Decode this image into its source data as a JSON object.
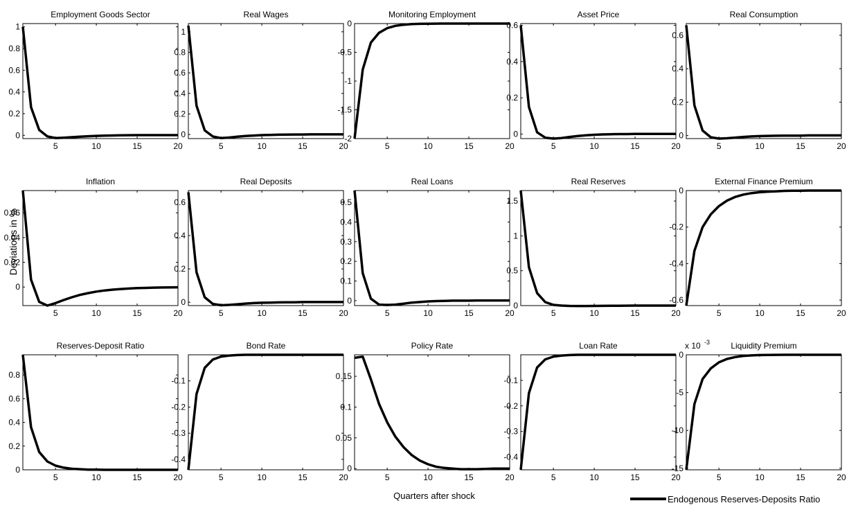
{
  "figure": {
    "ylabel": "Deviations in %",
    "xlabel": "Quarters after shock",
    "legend_label": "Endogenous Reserves-Deposits Ratio",
    "line_color": "#000000"
  },
  "chart_data": [
    {
      "type": "line",
      "title": "Employment Goods Sector",
      "xlim": [
        1,
        20
      ],
      "ylim": [
        -0.03,
        1.03
      ],
      "xticks": [
        5,
        10,
        15,
        20
      ],
      "xtick_labels": [
        "5",
        "10",
        "15",
        "20"
      ],
      "yticks": [
        0,
        0.2,
        0.4,
        0.6,
        0.8,
        1
      ],
      "ytick_labels": [
        "0",
        "0.2",
        "0.4",
        "0.6",
        "0.8",
        "1"
      ],
      "x": [
        1,
        2,
        3,
        4,
        5,
        6,
        7,
        8,
        9,
        10,
        11,
        12,
        13,
        14,
        15,
        16,
        17,
        18,
        19,
        20
      ],
      "y": [
        1.0,
        0.26,
        0.05,
        -0.01,
        -0.025,
        -0.022,
        -0.017,
        -0.012,
        -0.008,
        -0.005,
        -0.003,
        -0.001,
        0.0,
        0.001,
        0.002,
        0.002,
        0.002,
        0.002,
        0.002,
        0.002
      ]
    },
    {
      "type": "line",
      "title": "Real Wages",
      "xlim": [
        1,
        20
      ],
      "ylim": [
        -0.04,
        1.08
      ],
      "xticks": [
        5,
        10,
        15,
        20
      ],
      "xtick_labels": [
        "5",
        "10",
        "15",
        "20"
      ],
      "yticks": [
        0,
        0.2,
        0.4,
        0.6,
        0.8,
        1
      ],
      "ytick_labels": [
        "0",
        "0.2",
        "0.4",
        "0.6",
        "0.8",
        "1"
      ],
      "x": [
        1,
        2,
        3,
        4,
        5,
        6,
        7,
        8,
        9,
        10,
        11,
        12,
        13,
        14,
        15,
        16,
        17,
        18,
        19,
        20
      ],
      "y": [
        1.06,
        0.28,
        0.04,
        -0.02,
        -0.035,
        -0.03,
        -0.022,
        -0.015,
        -0.01,
        -0.006,
        -0.004,
        -0.002,
        -0.001,
        0.0,
        0.0,
        0.001,
        0.001,
        0.001,
        0.001,
        0.001
      ]
    },
    {
      "type": "line",
      "title": "Monitoring Employment",
      "xlim": [
        1,
        20
      ],
      "ylim": [
        -2.0,
        0.0
      ],
      "xticks": [
        5,
        10,
        15,
        20
      ],
      "xtick_labels": [
        "5",
        "10",
        "15",
        "20"
      ],
      "yticks": [
        -2,
        -1.5,
        -1,
        -0.5,
        0
      ],
      "ytick_labels": [
        "-2",
        "-1.5",
        "-1",
        "-0.5",
        "0"
      ],
      "x": [
        1,
        2,
        3,
        4,
        5,
        6,
        7,
        8,
        9,
        10,
        11,
        12,
        13,
        14,
        15,
        16,
        17,
        18,
        19,
        20
      ],
      "y": [
        -2.0,
        -0.8,
        -0.33,
        -0.16,
        -0.08,
        -0.04,
        -0.02,
        -0.01,
        -0.005,
        -0.002,
        -0.001,
        0.0,
        0.0,
        0.0,
        0.0,
        0.0,
        0.0,
        0.0,
        0.0,
        0.0
      ]
    },
    {
      "type": "line",
      "title": "Asset Price",
      "xlim": [
        1,
        20
      ],
      "ylim": [
        -0.025,
        0.61
      ],
      "xticks": [
        5,
        10,
        15,
        20
      ],
      "xtick_labels": [
        "5",
        "10",
        "15",
        "20"
      ],
      "yticks": [
        0,
        0.2,
        0.4,
        0.6
      ],
      "ytick_labels": [
        "0",
        "0.2",
        "0.4",
        "0.6"
      ],
      "x": [
        1,
        2,
        3,
        4,
        5,
        6,
        7,
        8,
        9,
        10,
        11,
        12,
        13,
        14,
        15,
        16,
        17,
        18,
        19,
        20
      ],
      "y": [
        0.6,
        0.15,
        0.01,
        -0.02,
        -0.025,
        -0.022,
        -0.016,
        -0.011,
        -0.007,
        -0.004,
        -0.002,
        -0.001,
        0.0,
        0.0,
        0.001,
        0.001,
        0.001,
        0.001,
        0.001,
        0.001
      ]
    },
    {
      "type": "line",
      "title": "Real Consumption",
      "xlim": [
        1,
        20
      ],
      "ylim": [
        -0.018,
        0.67
      ],
      "xticks": [
        5,
        10,
        15,
        20
      ],
      "xtick_labels": [
        "5",
        "10",
        "15",
        "20"
      ],
      "yticks": [
        0,
        0.2,
        0.4,
        0.6
      ],
      "ytick_labels": [
        "0",
        "0.2",
        "0.4",
        "0.6"
      ],
      "x": [
        1,
        2,
        3,
        4,
        5,
        6,
        7,
        8,
        9,
        10,
        11,
        12,
        13,
        14,
        15,
        16,
        17,
        18,
        19,
        20
      ],
      "y": [
        0.66,
        0.18,
        0.03,
        -0.01,
        -0.018,
        -0.016,
        -0.012,
        -0.008,
        -0.005,
        -0.003,
        -0.002,
        -0.001,
        0.0,
        0.0,
        0.0,
        0.001,
        0.001,
        0.001,
        0.001,
        0.001
      ]
    },
    {
      "type": "line",
      "title": "Inflation",
      "xlim": [
        1,
        20
      ],
      "ylim": [
        -0.015,
        0.078
      ],
      "xticks": [
        5,
        10,
        15,
        20
      ],
      "xtick_labels": [
        "5",
        "10",
        "15",
        "20"
      ],
      "yticks": [
        0,
        0.02,
        0.04,
        0.06
      ],
      "ytick_labels": [
        "0",
        "0.02",
        "0.04",
        "0.06"
      ],
      "x": [
        1,
        2,
        3,
        4,
        5,
        6,
        7,
        8,
        9,
        10,
        11,
        12,
        13,
        14,
        15,
        16,
        17,
        18,
        19,
        20
      ],
      "y": [
        0.078,
        0.006,
        -0.012,
        -0.015,
        -0.013,
        -0.0105,
        -0.0083,
        -0.0064,
        -0.0049,
        -0.0037,
        -0.0028,
        -0.0021,
        -0.0016,
        -0.0012,
        -0.0009,
        -0.0007,
        -0.0005,
        -0.0004,
        -0.0003,
        -0.0002
      ]
    },
    {
      "type": "line",
      "title": "Real Deposits",
      "xlim": [
        1,
        20
      ],
      "ylim": [
        -0.02,
        0.67
      ],
      "xticks": [
        5,
        10,
        15,
        20
      ],
      "xtick_labels": [
        "5",
        "10",
        "15",
        "20"
      ],
      "yticks": [
        0,
        0.2,
        0.4,
        0.6
      ],
      "ytick_labels": [
        "0",
        "0.2",
        "0.4",
        "0.6"
      ],
      "x": [
        1,
        2,
        3,
        4,
        5,
        6,
        7,
        8,
        9,
        10,
        11,
        12,
        13,
        14,
        15,
        16,
        17,
        18,
        19,
        20
      ],
      "y": [
        0.66,
        0.18,
        0.03,
        -0.01,
        -0.018,
        -0.016,
        -0.012,
        -0.008,
        -0.005,
        -0.003,
        -0.002,
        -0.001,
        0.0,
        0.0,
        0.001,
        0.001,
        0.001,
        0.001,
        0.001,
        0.001
      ]
    },
    {
      "type": "line",
      "title": "Real Loans",
      "xlim": [
        1,
        20
      ],
      "ylim": [
        -0.025,
        0.56
      ],
      "xticks": [
        5,
        10,
        15,
        20
      ],
      "xtick_labels": [
        "5",
        "10",
        "15",
        "20"
      ],
      "yticks": [
        0,
        0.1,
        0.2,
        0.3,
        0.4,
        0.5
      ],
      "ytick_labels": [
        "0",
        "0.1",
        "0.2",
        "0.3",
        "0.4",
        "0.5"
      ],
      "x": [
        1,
        2,
        3,
        4,
        5,
        6,
        7,
        8,
        9,
        10,
        11,
        12,
        13,
        14,
        15,
        16,
        17,
        18,
        19,
        20
      ],
      "y": [
        0.56,
        0.14,
        0.01,
        -0.02,
        -0.022,
        -0.02,
        -0.015,
        -0.01,
        -0.007,
        -0.004,
        -0.002,
        -0.001,
        0.0,
        0.0,
        0.0,
        0.001,
        0.001,
        0.001,
        0.001,
        0.001
      ]
    },
    {
      "type": "line",
      "title": "Real Reserves",
      "xlim": [
        1,
        20
      ],
      "ylim": [
        0.0,
        1.65
      ],
      "xticks": [
        5,
        10,
        15,
        20
      ],
      "xtick_labels": [
        "5",
        "10",
        "15",
        "20"
      ],
      "yticks": [
        0,
        0.5,
        1,
        1.5
      ],
      "ytick_labels": [
        "0",
        "0.5",
        "1",
        "1.5"
      ],
      "x": [
        1,
        2,
        3,
        4,
        5,
        6,
        7,
        8,
        9,
        10,
        11,
        12,
        13,
        14,
        15,
        16,
        17,
        18,
        19,
        20
      ],
      "y": [
        1.65,
        0.55,
        0.18,
        0.05,
        0.01,
        0.0,
        -0.005,
        -0.006,
        -0.006,
        -0.005,
        -0.004,
        -0.003,
        -0.002,
        -0.001,
        0.0,
        0.0,
        0.0,
        0.0,
        0.0,
        0.0
      ]
    },
    {
      "type": "line",
      "title": "External Finance Premium",
      "xlim": [
        1,
        20
      ],
      "ylim": [
        -0.63,
        0.0
      ],
      "xticks": [
        5,
        10,
        15,
        20
      ],
      "xtick_labels": [
        "5",
        "10",
        "15",
        "20"
      ],
      "yticks": [
        -0.6,
        -0.4,
        -0.2,
        0
      ],
      "ytick_labels": [
        "-0.6",
        "-0.4",
        "-0.2",
        "0"
      ],
      "x": [
        1,
        2,
        3,
        4,
        5,
        6,
        7,
        8,
        9,
        10,
        11,
        12,
        13,
        14,
        15,
        16,
        17,
        18,
        19,
        20
      ],
      "y": [
        -0.63,
        -0.33,
        -0.2,
        -0.13,
        -0.085,
        -0.055,
        -0.035,
        -0.022,
        -0.014,
        -0.009,
        -0.006,
        -0.004,
        -0.002,
        -0.001,
        -0.001,
        0.0,
        0.0,
        0.0,
        0.0,
        0.0
      ]
    },
    {
      "type": "line",
      "title": "Reserves-Deposit Ratio",
      "xlim": [
        1,
        20
      ],
      "ylim": [
        0.0,
        0.97
      ],
      "xticks": [
        5,
        10,
        15,
        20
      ],
      "xtick_labels": [
        "5",
        "10",
        "15",
        "20"
      ],
      "yticks": [
        0,
        0.2,
        0.4,
        0.6,
        0.8
      ],
      "ytick_labels": [
        "0",
        "0.2",
        "0.4",
        "0.6",
        "0.8"
      ],
      "x": [
        1,
        2,
        3,
        4,
        5,
        6,
        7,
        8,
        9,
        10,
        11,
        12,
        13,
        14,
        15,
        16,
        17,
        18,
        19,
        20
      ],
      "y": [
        0.97,
        0.36,
        0.15,
        0.07,
        0.035,
        0.018,
        0.009,
        0.005,
        0.002,
        0.001,
        0.0,
        0.0,
        0.0,
        0.0,
        0.0,
        0.0,
        0.0,
        0.0,
        0.0,
        0.0
      ]
    },
    {
      "type": "line",
      "title": "Bond Rate",
      "xlim": [
        1,
        20
      ],
      "ylim": [
        -0.44,
        0.0
      ],
      "xticks": [
        5,
        10,
        15,
        20
      ],
      "xtick_labels": [
        "5",
        "10",
        "15",
        "20"
      ],
      "yticks": [
        -0.4,
        -0.3,
        -0.2,
        -0.1
      ],
      "ytick_labels": [
        "-0.4",
        "-0.3",
        "-0.2",
        "-0.1"
      ],
      "x": [
        1,
        2,
        3,
        4,
        5,
        6,
        7,
        8,
        9,
        10,
        11,
        12,
        13,
        14,
        15,
        16,
        17,
        18,
        19,
        20
      ],
      "y": [
        -0.44,
        -0.15,
        -0.05,
        -0.018,
        -0.007,
        -0.003,
        -0.001,
        0.0,
        0.0,
        0.0,
        0.0,
        0.0,
        0.0,
        0.0,
        0.0,
        0.0,
        0.0,
        0.0,
        0.0,
        0.0
      ]
    },
    {
      "type": "line",
      "title": "Policy Rate",
      "xlim": [
        1,
        20
      ],
      "ylim": [
        -0.002,
        0.185
      ],
      "xticks": [
        5,
        10,
        15,
        20
      ],
      "xtick_labels": [
        "5",
        "10",
        "15",
        "20"
      ],
      "yticks": [
        0,
        0.05,
        0.1,
        0.15
      ],
      "ytick_labels": [
        "0",
        "0.05",
        "0.1",
        "0.15"
      ],
      "x": [
        1,
        2,
        3,
        4,
        5,
        6,
        7,
        8,
        9,
        10,
        11,
        12,
        13,
        14,
        15,
        16,
        17,
        18,
        19,
        20
      ],
      "y": [
        0.18,
        0.182,
        0.145,
        0.105,
        0.075,
        0.052,
        0.035,
        0.022,
        0.013,
        0.007,
        0.003,
        0.001,
        0.0,
        -0.001,
        -0.001,
        -0.001,
        -0.0005,
        0.0,
        0.0,
        0.0
      ]
    },
    {
      "type": "line",
      "title": "Loan Rate",
      "xlim": [
        1,
        20
      ],
      "ylim": [
        -0.45,
        0.0
      ],
      "xticks": [
        5,
        10,
        15,
        20
      ],
      "xtick_labels": [
        "5",
        "10",
        "15",
        "20"
      ],
      "yticks": [
        -0.4,
        -0.3,
        -0.2,
        -0.1
      ],
      "ytick_labels": [
        "-0.4",
        "-0.3",
        "-0.2",
        "-0.1"
      ],
      "x": [
        1,
        2,
        3,
        4,
        5,
        6,
        7,
        8,
        9,
        10,
        11,
        12,
        13,
        14,
        15,
        16,
        17,
        18,
        19,
        20
      ],
      "y": [
        -0.45,
        -0.15,
        -0.05,
        -0.018,
        -0.007,
        -0.003,
        -0.001,
        0.0,
        0.0,
        0.0,
        0.0,
        0.0,
        0.0,
        0.0,
        0.0,
        0.0,
        0.0,
        0.0,
        0.0,
        0.0
      ]
    },
    {
      "type": "line",
      "title": "Liquidity Premium",
      "xlim": [
        1,
        20
      ],
      "ylim": [
        -15.2,
        0.0
      ],
      "scale_note": "x 10",
      "scale_exp": "-3",
      "xticks": [
        5,
        10,
        15,
        20
      ],
      "xtick_labels": [
        "5",
        "10",
        "15",
        "20"
      ],
      "yticks": [
        -15,
        -10,
        -5,
        0
      ],
      "ytick_labels": [
        "-15",
        "-10",
        "-5",
        "0"
      ],
      "x": [
        1,
        2,
        3,
        4,
        5,
        6,
        7,
        8,
        9,
        10,
        11,
        12,
        13,
        14,
        15,
        16,
        17,
        18,
        19,
        20
      ],
      "y": [
        -15.2,
        -6.5,
        -3.2,
        -1.8,
        -1.0,
        -0.55,
        -0.3,
        -0.15,
        -0.08,
        -0.04,
        -0.02,
        -0.01,
        0.0,
        0.0,
        0.0,
        0.0,
        0.0,
        0.0,
        0.0,
        0.0
      ]
    }
  ]
}
